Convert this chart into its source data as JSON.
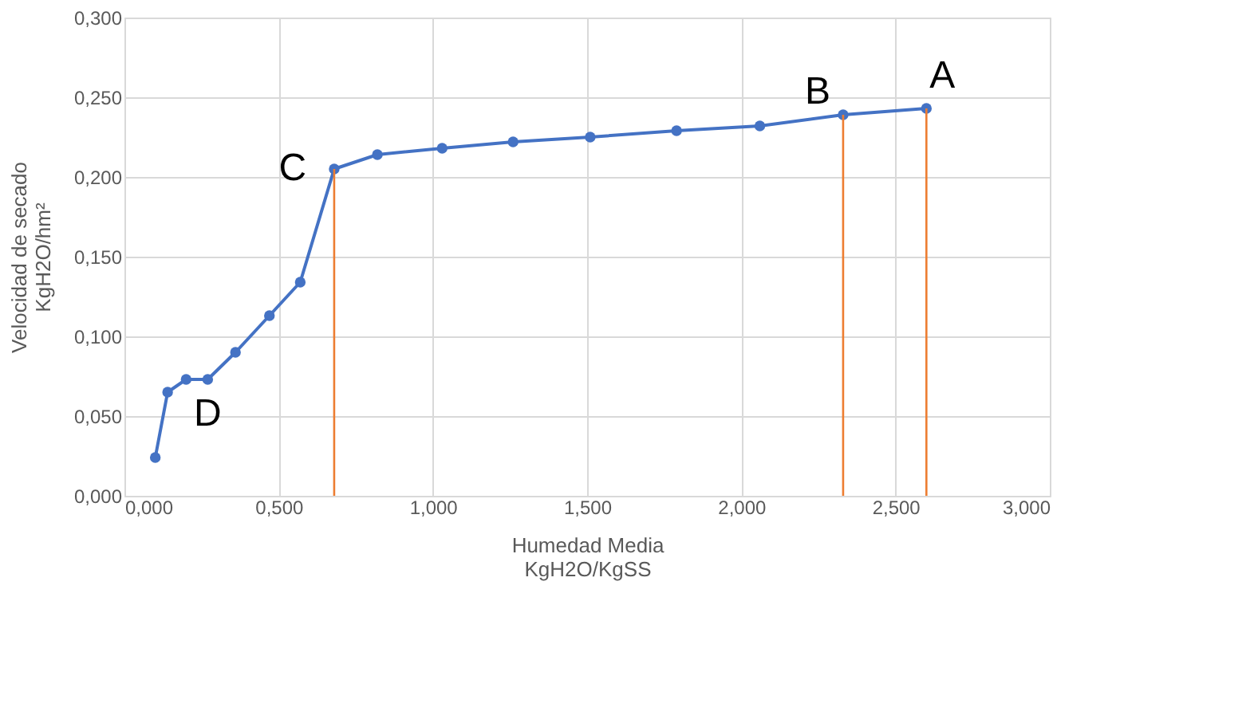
{
  "chart_data": {
    "type": "line",
    "xlabel": "Humedad Media\nKgH2O/KgSS",
    "ylabel": "Velocidad de secado\nKgH2O/hm²",
    "series": [
      {
        "color": "#4472c4",
        "marker": "circle",
        "x": [
          0.1,
          0.14,
          0.2,
          0.27,
          0.36,
          0.47,
          0.57,
          0.68,
          0.82,
          1.03,
          1.26,
          1.51,
          1.79,
          2.06,
          2.33,
          2.6
        ],
        "values": [
          0.024,
          0.065,
          0.073,
          0.073,
          0.09,
          0.113,
          0.134,
          0.205,
          0.214,
          0.218,
          0.222,
          0.225,
          0.229,
          0.232,
          0.239,
          0.243
        ]
      },
      {
        "color": "#ed7d31",
        "marker": "none",
        "x": [
          0.68,
          0.68
        ],
        "values": [
          0,
          0.205
        ]
      },
      {
        "color": "#ed7d31",
        "marker": "none",
        "x": [
          2.33,
          2.33
        ],
        "values": [
          0,
          0.239
        ]
      },
      {
        "color": "#ed7d31",
        "marker": "none",
        "x": [
          2.6,
          2.6
        ],
        "values": [
          0,
          0.243
        ]
      }
    ],
    "annotations": [
      {
        "text": "A",
        "x": 2.6,
        "y": 0.243
      },
      {
        "text": "B",
        "x": 2.33,
        "y": 0.239
      },
      {
        "text": "C",
        "x": 0.68,
        "y": 0.205
      },
      {
        "text": "D",
        "x": 0.27,
        "y": 0.073
      }
    ],
    "xlim": [
      0,
      3
    ],
    "ylim": [
      0,
      0.3
    ],
    "xticks": [
      {
        "value": 0,
        "label": "0,000"
      },
      {
        "value": 0.5,
        "label": "0,500"
      },
      {
        "value": 1,
        "label": "1,000"
      },
      {
        "value": 1.5,
        "label": "1,500"
      },
      {
        "value": 2,
        "label": "2,000"
      },
      {
        "value": 2.5,
        "label": "2,500"
      },
      {
        "value": 3,
        "label": "3,000"
      }
    ],
    "yticks": [
      {
        "value": 0,
        "label": "0,000"
      },
      {
        "value": 0.05,
        "label": "0,050"
      },
      {
        "value": 0.1,
        "label": "0,100"
      },
      {
        "value": 0.15,
        "label": "0,150"
      },
      {
        "value": 0.2,
        "label": "0,200"
      },
      {
        "value": 0.25,
        "label": "0,250"
      },
      {
        "value": 0.3,
        "label": "0,300"
      }
    ],
    "grid": true,
    "legend": false
  }
}
